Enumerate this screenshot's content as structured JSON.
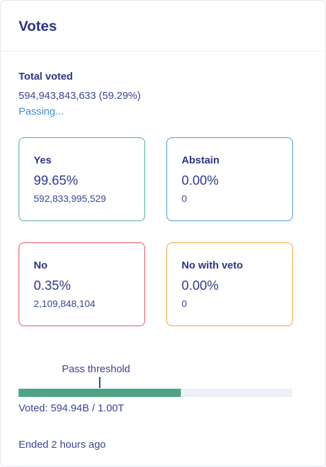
{
  "header": {
    "title": "Votes"
  },
  "summary": {
    "total_label": "Total voted",
    "total_value": "594,943,843,633 (59.29%)",
    "status": "Passing..."
  },
  "options": {
    "yes": {
      "label": "Yes",
      "percent": "99.65%",
      "amount": "592,833,995,529"
    },
    "abstain": {
      "label": "Abstain",
      "percent": "0.00%",
      "amount": "0"
    },
    "no": {
      "label": "No",
      "percent": "0.35%",
      "amount": "2,109,848,104"
    },
    "veto": {
      "label": "No with veto",
      "percent": "0.00%",
      "amount": "0"
    }
  },
  "progress": {
    "threshold_label": "Pass threshold",
    "voted_fraction": 0.5929,
    "voted_text": "Voted: 594.94B / 1.00T"
  },
  "footer": {
    "ended_text": "Ended 2 hours ago"
  },
  "colors": {
    "yes": "#4caf8e",
    "abstain": "#4a9bd6",
    "no": "#e2515f",
    "veto": "#f0a33b",
    "bar_fill": "#4fa486",
    "status": "#3c8fd6"
  }
}
